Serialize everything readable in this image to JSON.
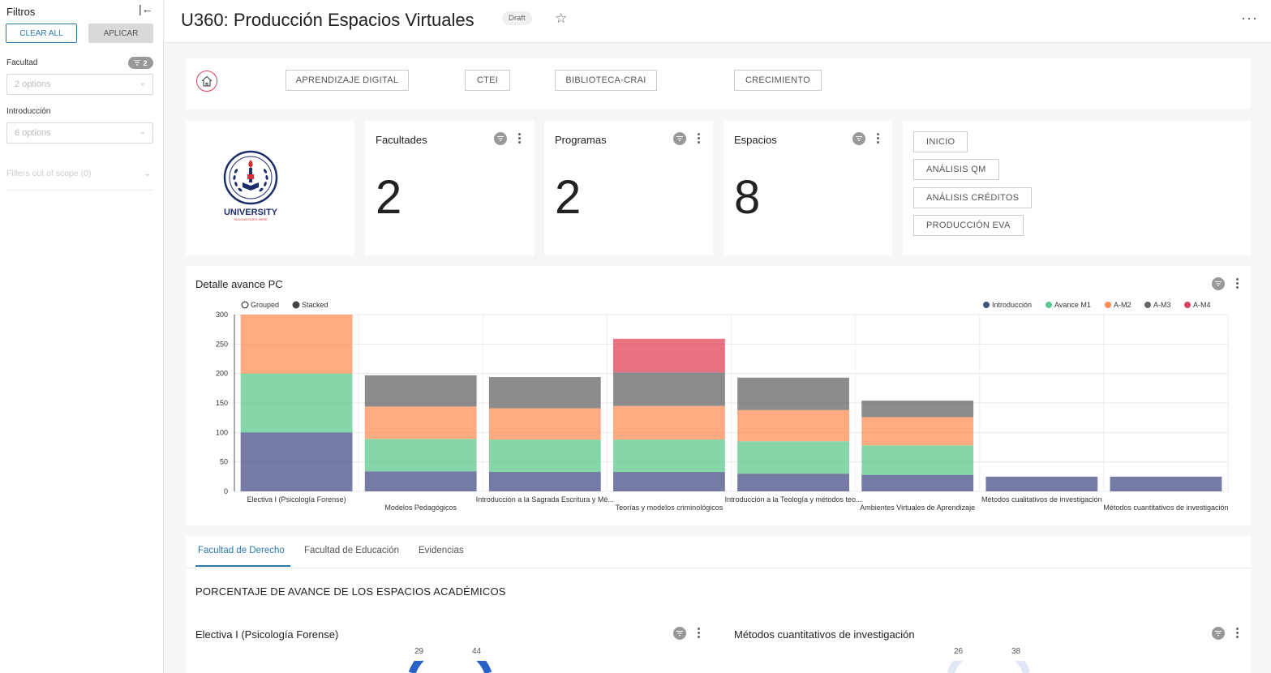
{
  "sidebar": {
    "title": "Filtros",
    "clear_all": "CLEAR ALL",
    "apply": "APLICAR",
    "filters": [
      {
        "label": "Facultad",
        "placeholder": "2 options",
        "badge": "2"
      },
      {
        "label": "Introducción",
        "placeholder": "6 options"
      }
    ],
    "out_of_scope": "Filters out of scope (0)"
  },
  "header": {
    "title": "U360: Producción Espacios Virtuales",
    "status": "Draft"
  },
  "nav": {
    "buttons": [
      "APRENDIZAJE DIGITAL",
      "CTEI",
      "BIBLIOTECA-CRAI",
      "CRECIMIENTO"
    ]
  },
  "logo": {
    "text": "UNIVERSITY",
    "slogan": "SLOGAN GOES HERE"
  },
  "kpis": [
    {
      "title": "Facultades",
      "value": "2"
    },
    {
      "title": "Programas",
      "value": "2"
    },
    {
      "title": "Espacios",
      "value": "8"
    }
  ],
  "links": [
    "INICIO",
    "ANÁLISIS QM",
    "ANÁLISIS CRÉDITOS",
    "PRODUCCIÓN EVA"
  ],
  "chart_title": "Detalle avance PC",
  "chart_data": {
    "type": "bar",
    "stacked": true,
    "modes": [
      "Grouped",
      "Stacked"
    ],
    "selected_mode": "Stacked",
    "ylim": [
      0,
      300
    ],
    "yticks": [
      0,
      50,
      100,
      150,
      200,
      250,
      300
    ],
    "legend_position": "top-right",
    "categories": [
      "Electiva I (Psicología Forense)",
      "Modelos Pedagógicos",
      "Introducción a la Sagrada Escritura y Mé...",
      "Teorías y modelos criminológicos",
      "Introducción a la Teología y métodos teo...",
      "Ambientes Virtuales de Aprendizaje",
      "Métodos cualitativos de investigación",
      "Métodos cuantitativos de investigación"
    ],
    "series": [
      {
        "name": "Introducción",
        "color": "#474f85",
        "values": [
          100,
          34,
          33,
          33,
          30,
          28,
          25,
          25
        ]
      },
      {
        "name": "Avance M1",
        "color": "#5cc98e",
        "values": [
          100,
          55,
          55,
          55,
          55,
          50,
          0,
          0
        ]
      },
      {
        "name": "A-M2",
        "color": "#ff8d57",
        "values": [
          100,
          55,
          53,
          57,
          53,
          48,
          0,
          0
        ]
      },
      {
        "name": "A-M3",
        "color": "#666666",
        "values": [
          0,
          53,
          53,
          57,
          55,
          28,
          0,
          0
        ]
      },
      {
        "name": "A-M4",
        "color": "#e04356",
        "values": [
          0,
          0,
          0,
          57,
          0,
          0,
          0,
          0
        ]
      }
    ]
  },
  "tabs": [
    "Facultad de Derecho",
    "Facultad de Educación",
    "Evidencias"
  ],
  "section_title": "PORCENTAJE DE AVANCE DE LOS ESPACIOS ACADÉMICOS",
  "gauges": [
    {
      "title": "Electiva I (Psicología Forense)",
      "labels": [
        "29",
        "44"
      ]
    },
    {
      "title": "Métodos cuantitativos de investigación",
      "labels": [
        "26",
        "38"
      ]
    }
  ]
}
